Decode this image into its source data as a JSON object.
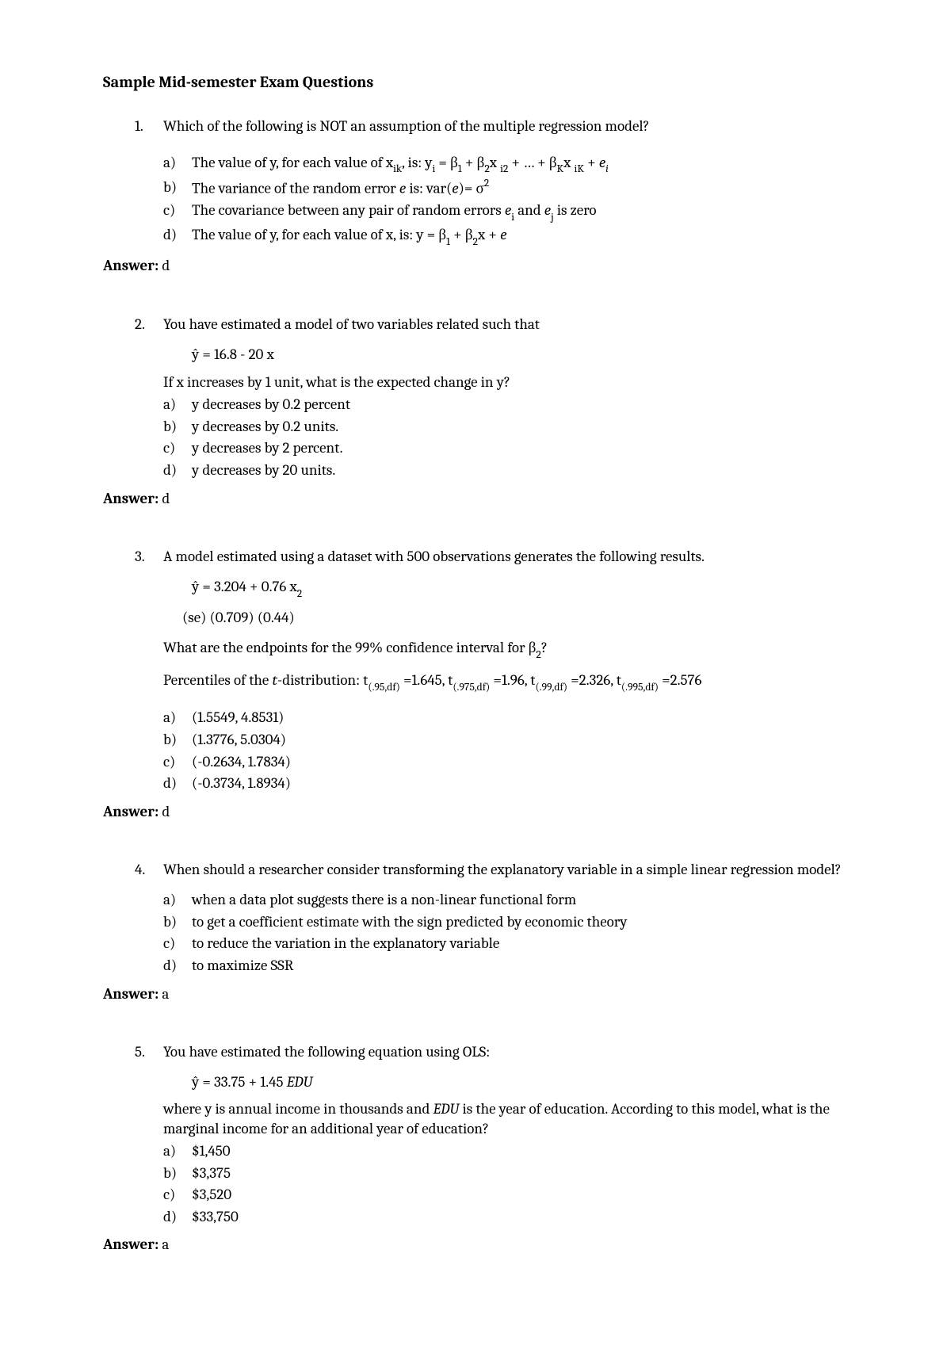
{
  "title": "Sample Mid-semester Exam Questions",
  "answer_label": "Answer:",
  "questions": [
    {
      "num": "1.",
      "stem": "Which of the following is NOT an assumption of the multiple regression model?",
      "options": [
        {
          "label": "a)",
          "html": "The value of y, for each value of x<span class='sub'>ik</span>, is:   y<span class='sub'>i</span> = β<span class='sub'>1</span> + β<span class='sub'>2</span>x <span class='sub'>i2</span> + … + β<span class='sub'>K</span>x <span class='sub'>iK</span> + <span class='ital'>e<span class='sub'>i</span></span>"
        },
        {
          "label": "b)",
          "html": "The variance of the random error <span class='ital'>e</span> is:  var(<span class='ital'>e</span>)= σ<span class='sup'>2</span>"
        },
        {
          "label": "c)",
          "html": "The covariance between any pair of random errors <span class='ital'>e</span><span class='sub'>i</span> and <span class='ital'>e</span><span class='sub'>j</span> is zero"
        },
        {
          "label": "d)",
          "html": "The value of y, for each value of x, is:   y = β<span class='sub'>1</span> + β<span class='sub'>2</span>x + <span class='ital'>e</span>"
        }
      ],
      "answer": "d"
    },
    {
      "num": "2.",
      "stem": "You have estimated a model of two variables related such that",
      "extra1_html": "ŷ = 16.8 - 20 x",
      "post_html": "If x increases by 1 unit, what is the expected change in y?",
      "options": [
        {
          "label": "a)",
          "html": "y decreases by 0.2 percent"
        },
        {
          "label": "b)",
          "html": "y decreases by 0.2 units."
        },
        {
          "label": "c)",
          "html": "y decreases by 2 percent."
        },
        {
          "label": "d)",
          "html": "y decreases by 20 units."
        }
      ],
      "answer": "d"
    },
    {
      "num": "3.",
      "stem": "A model estimated using a dataset with 500 observations generates the following results.",
      "extra1_html": "ŷ  =   3.204  +  0.76 x<span class='sub'>2</span>",
      "extra2_html": "(se)  (0.709)   (0.44)",
      "post_html": "What are the endpoints for the 99% confidence interval for β<span class='sub'>2</span>?",
      "post2_html": "Percentiles of the <span class='ital'>t</span>-distribution:  t<span class='sub'>(.95,df)</span> =1.645, t<span class='sub'>(.975,df)</span> =1.96, t<span class='sub'>(.99,df)</span> =2.326, t<span class='sub'>(.995,df)</span> =2.576",
      "options": [
        {
          "label": "a)",
          "html": " (1.5549,  4.8531)"
        },
        {
          "label": "b)",
          "html": "(1.3776,   5.0304)"
        },
        {
          "label": "c)",
          "html": " (-0.2634,  1.7834)"
        },
        {
          "label": "d)",
          "html": "(-0.3734,  1.8934)"
        }
      ],
      "answer": "d"
    },
    {
      "num": "4.",
      "stem": "When should a researcher consider transforming the explanatory variable in a simple linear regression model?",
      "options": [
        {
          "label": "a)",
          "html": "when a data plot suggests there is a non-linear functional form"
        },
        {
          "label": "b)",
          "html": "to get a coefficient estimate with the sign predicted by economic theory"
        },
        {
          "label": "c)",
          "html": "to reduce the variation in the explanatory variable"
        },
        {
          "label": "d)",
          "html": "to maximize SSR"
        }
      ],
      "answer": "a"
    },
    {
      "num": "5.",
      "stem": "You have estimated the following equation using OLS:",
      "extra1_html": "ŷ = 33.75 + 1.45 <span class='ital'>EDU</span>",
      "post_html": "where y is annual income in thousands and <span class='ital'>EDU</span> is the year of education.  According to this model, what is the marginal income for an additional year of education?",
      "options": [
        {
          "label": "a)",
          "html": "$1,450"
        },
        {
          "label": "b)",
          "html": "$3,375"
        },
        {
          "label": "c)",
          "html": "$3,520"
        },
        {
          "label": "d)",
          "html": "$33,750"
        }
      ],
      "answer": "a"
    }
  ]
}
